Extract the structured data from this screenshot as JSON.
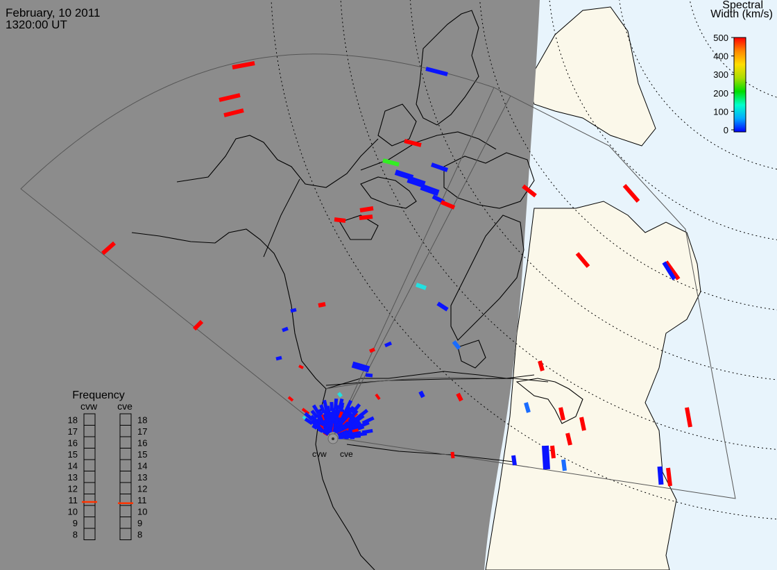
{
  "header": {
    "date": "February, 10 2011",
    "time": "1320:00 UT"
  },
  "colorbar": {
    "title_line1": "Spectral",
    "title_line2": "Width (km/s)",
    "ticks": [
      "500",
      "400",
      "300",
      "200",
      "100",
      "0"
    ],
    "colors": [
      "#0000ff",
      "#00aaff",
      "#00ffcc",
      "#00dd00",
      "#aadd00",
      "#ffdd00",
      "#ff8800",
      "#ff0000"
    ]
  },
  "radars": [
    {
      "code": "cvw"
    },
    {
      "code": "cve"
    }
  ],
  "frequency_panel": {
    "title": "Frequency",
    "col_left": "cvw",
    "col_right": "cve",
    "ticks": [
      "18",
      "17",
      "16",
      "15",
      "14",
      "13",
      "12",
      "11",
      "10",
      "9",
      "8"
    ],
    "cvw_marker_mhz": 10.8,
    "cve_marker_mhz": 10.7,
    "marker_color": "#ff3300"
  },
  "map_colors": {
    "night_fill": "#8c8c8c",
    "day_land": "#fbf8ea",
    "day_ocean": "#e8f4fc",
    "scatter_red": "#ff0000",
    "scatter_blue": "#0a14ff",
    "scatter_green": "#33ee22",
    "scatter_cyan": "#22e0e0",
    "scatter_azure": "#1a6cff"
  }
}
